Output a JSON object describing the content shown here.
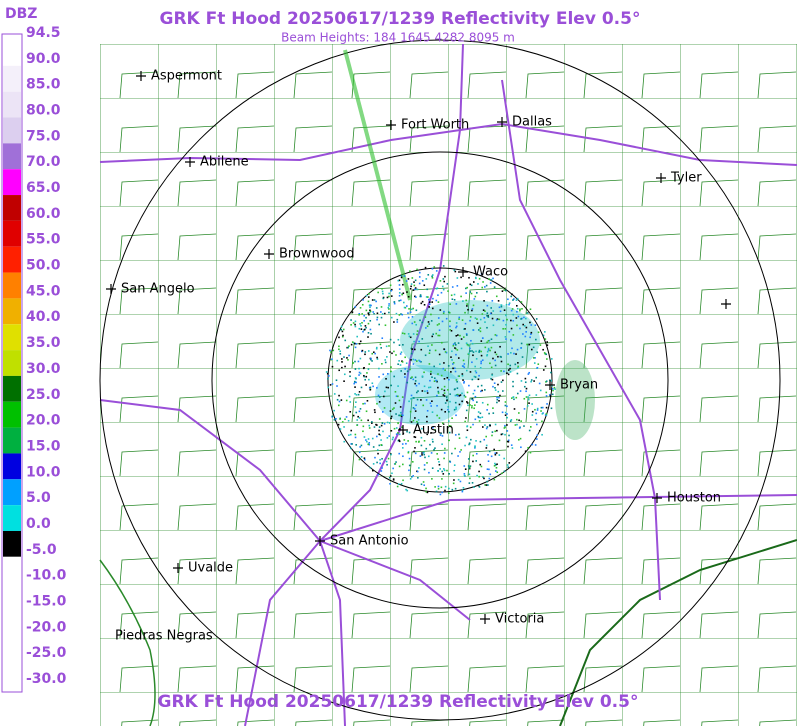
{
  "title": "GRK Ft Hood 20250617/1239 Reflectivity Elev 0.5°",
  "subtitle": "Beam Heights: 184 1645 4282 8095 m",
  "footer_title": "GRK Ft Hood 20250617/1239 Reflectivity Elev 0.5°",
  "legend": {
    "unit": "DBZ",
    "labels": [
      "94.5",
      "90.0",
      "85.0",
      "80.0",
      "75.0",
      "70.0",
      "65.0",
      "60.0",
      "55.0",
      "50.0",
      "45.0",
      "40.0",
      "35.0",
      "30.0",
      "25.0",
      "20.0",
      "15.0",
      "10.0",
      "5.0",
      "0.0",
      "-5.0",
      "-10.0",
      "-15.0",
      "-20.0",
      "-25.0",
      "-30.0"
    ],
    "colors": [
      "#ffffff",
      "#f4f0fa",
      "#ece4f6",
      "#dccfef",
      "#a070d8",
      "#ff00ff",
      "#c00000",
      "#e00000",
      "#ff2000",
      "#ff8000",
      "#f0b000",
      "#e0e000",
      "#c0e000",
      "#007000",
      "#00c000",
      "#00b040",
      "#0000e0",
      "#00a0ff",
      "#00e0e0",
      "#000000",
      "#ffffff",
      "#ffffff",
      "#ffffff",
      "#ffffff",
      "#ffffff"
    ]
  },
  "cities": [
    {
      "name": "Aspermont",
      "cross": true
    },
    {
      "name": "Abilene",
      "cross": true
    },
    {
      "name": "Fort Worth",
      "cross": true
    },
    {
      "name": "Dallas",
      "cross": true
    },
    {
      "name": "Tyler",
      "cross": true
    },
    {
      "name": "Brownwood",
      "cross": true
    },
    {
      "name": "Waco",
      "cross": true
    },
    {
      "name": "San Angelo",
      "cross": true
    },
    {
      "name": "Bryan",
      "cross": true
    },
    {
      "name": "Austin",
      "cross": true
    },
    {
      "name": "Houston",
      "cross": true
    },
    {
      "name": "San Antonio",
      "cross": true
    },
    {
      "name": "Uvalde",
      "cross": true
    },
    {
      "name": "Victoria",
      "cross": true
    },
    {
      "name": "Piedras Negras",
      "cross": false
    }
  ]
}
